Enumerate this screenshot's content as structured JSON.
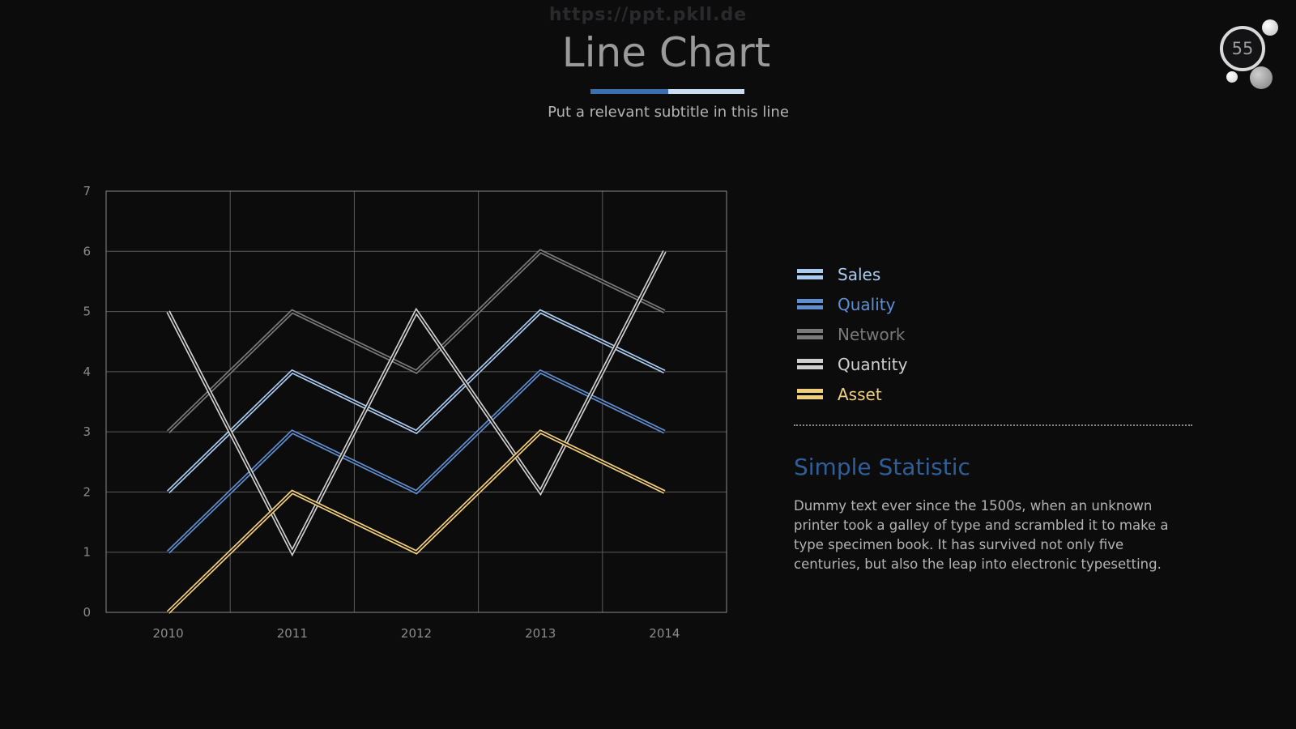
{
  "watermark": "https://ppt.pkll.de",
  "title": "Line Chart",
  "subtitle": "Put a relevant subtitle in this line",
  "page_number": "55",
  "colors": {
    "background": "#0d0c0d",
    "accent_dark": "#3a6fb0",
    "accent_light": "#c9dcf2",
    "heading": "#2e5f98"
  },
  "chart_data": {
    "type": "line",
    "categories": [
      "2010",
      "2011",
      "2012",
      "2013",
      "2014"
    ],
    "ylim": [
      0,
      7
    ],
    "yticks": [
      0,
      1,
      2,
      3,
      4,
      5,
      6,
      7
    ],
    "grid": true,
    "legend_position": "right",
    "series": [
      {
        "name": "Sales",
        "values": [
          2,
          4,
          3,
          5,
          4
        ],
        "color": "#a8cbef"
      },
      {
        "name": "Quality",
        "values": [
          1,
          3,
          2,
          4,
          3
        ],
        "color": "#5f8fd0"
      },
      {
        "name": "Network",
        "values": [
          3,
          5,
          4,
          6,
          5
        ],
        "color": "#7a7a7a"
      },
      {
        "name": "Quantity",
        "values": [
          5,
          1,
          5,
          2,
          6
        ],
        "color": "#cfcfcf"
      },
      {
        "name": "Asset",
        "values": [
          0,
          2,
          1,
          3,
          2
        ],
        "color": "#f2cf7a"
      }
    ]
  },
  "legend": [
    {
      "label": "Sales",
      "color": "#a8cbef"
    },
    {
      "label": "Quality",
      "color": "#5f8fd0"
    },
    {
      "label": "Network",
      "color": "#7a7a7a"
    },
    {
      "label": "Quantity",
      "color": "#cfcfcf"
    },
    {
      "label": "Asset",
      "color": "#f2cf7a"
    }
  ],
  "statistic": {
    "heading": "Simple Statistic",
    "body": "Dummy text ever since the 1500s, when an unknown printer took a galley of type and scrambled it to make a type specimen book. It has survived not only five centuries, but also the leap into electronic typesetting."
  }
}
